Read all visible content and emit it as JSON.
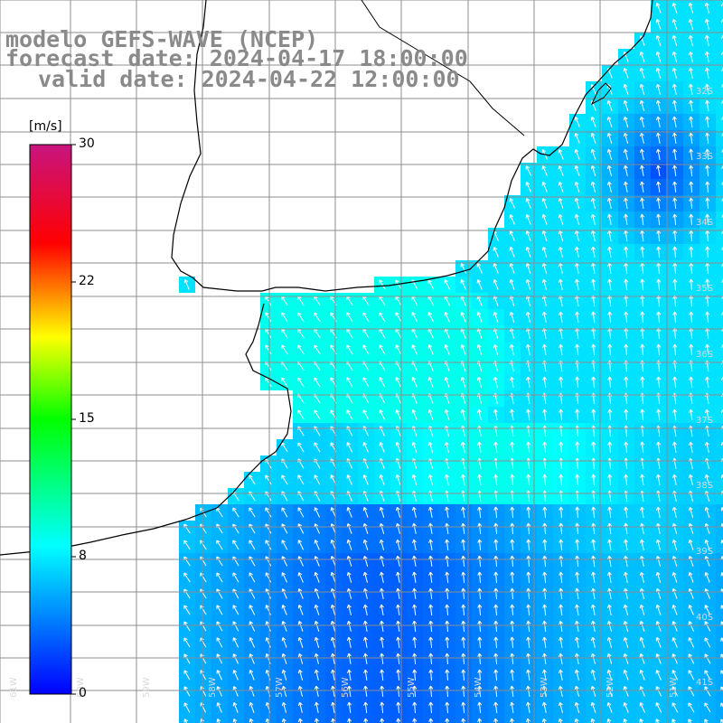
{
  "header": {
    "model": "modelo GEFS-WAVE (NCEP)",
    "forecast": "forecast date: 2024-04-17 18:00:00",
    "valid": "valid date: 2024-04-22 12:00:00"
  },
  "colorbar": {
    "unit": "[m/s]",
    "ticks": [
      "30",
      "22",
      "15",
      "8",
      "0"
    ],
    "tick_values": [
      30,
      22,
      15,
      8,
      0
    ],
    "range": [
      0,
      30
    ],
    "colors": [
      "#0000ff",
      "#00ffff",
      "#00ff00",
      "#ffff00",
      "#ff0000",
      "#c8147f"
    ]
  },
  "map": {
    "lat_labels": [
      "32S",
      "33S",
      "34S",
      "35S",
      "36S",
      "37S",
      "38S",
      "39S",
      "40S",
      "41S"
    ],
    "lon_labels": [
      "61W",
      "60W",
      "59W",
      "58W",
      "57W",
      "56W",
      "55W",
      "54W",
      "53W",
      "52W",
      "51W"
    ],
    "field": "wind speed with direction arrows",
    "land_color": "#ffffff",
    "grid_color": "#8c8c8c"
  }
}
